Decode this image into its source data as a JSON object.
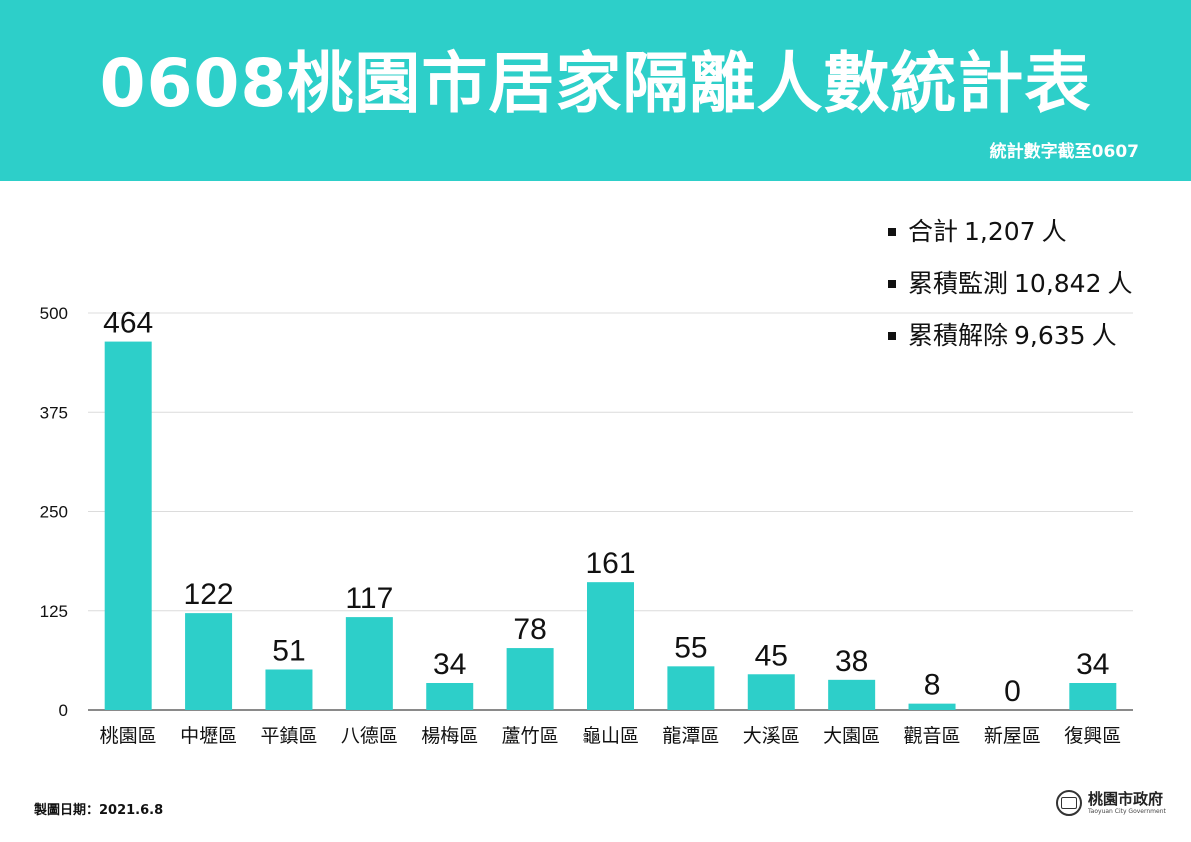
{
  "header": {
    "title": "0608桃園市居家隔離人數統計表",
    "subtitle": "統計數字截至0607",
    "color": "#2dcfc9"
  },
  "summary": [
    {
      "label": "合計",
      "value": "1,207",
      "unit": "人"
    },
    {
      "label": "累積監測",
      "value": "10,842",
      "unit": "人"
    },
    {
      "label": "累積解除",
      "value": "9,635",
      "unit": "人"
    }
  ],
  "chart_data": {
    "type": "bar",
    "categories": [
      "桃園區",
      "中壢區",
      "平鎮區",
      "八德區",
      "楊梅區",
      "蘆竹區",
      "龜山區",
      "龍潭區",
      "大溪區",
      "大園區",
      "觀音區",
      "新屋區",
      "復興區"
    ],
    "values": [
      464,
      122,
      51,
      117,
      34,
      78,
      161,
      55,
      45,
      38,
      8,
      0,
      34
    ],
    "yticks": [
      0,
      125,
      250,
      375,
      500
    ],
    "ylim": [
      0,
      500
    ],
    "bar_color": "#2dcfc9",
    "grid": true,
    "data_labels": true
  },
  "footer": {
    "date_label": "製圖日期：2021.6.8",
    "org_name": "桃園市政府",
    "org_sub": "Taoyuan City Government",
    "seal_text": "桃園"
  }
}
